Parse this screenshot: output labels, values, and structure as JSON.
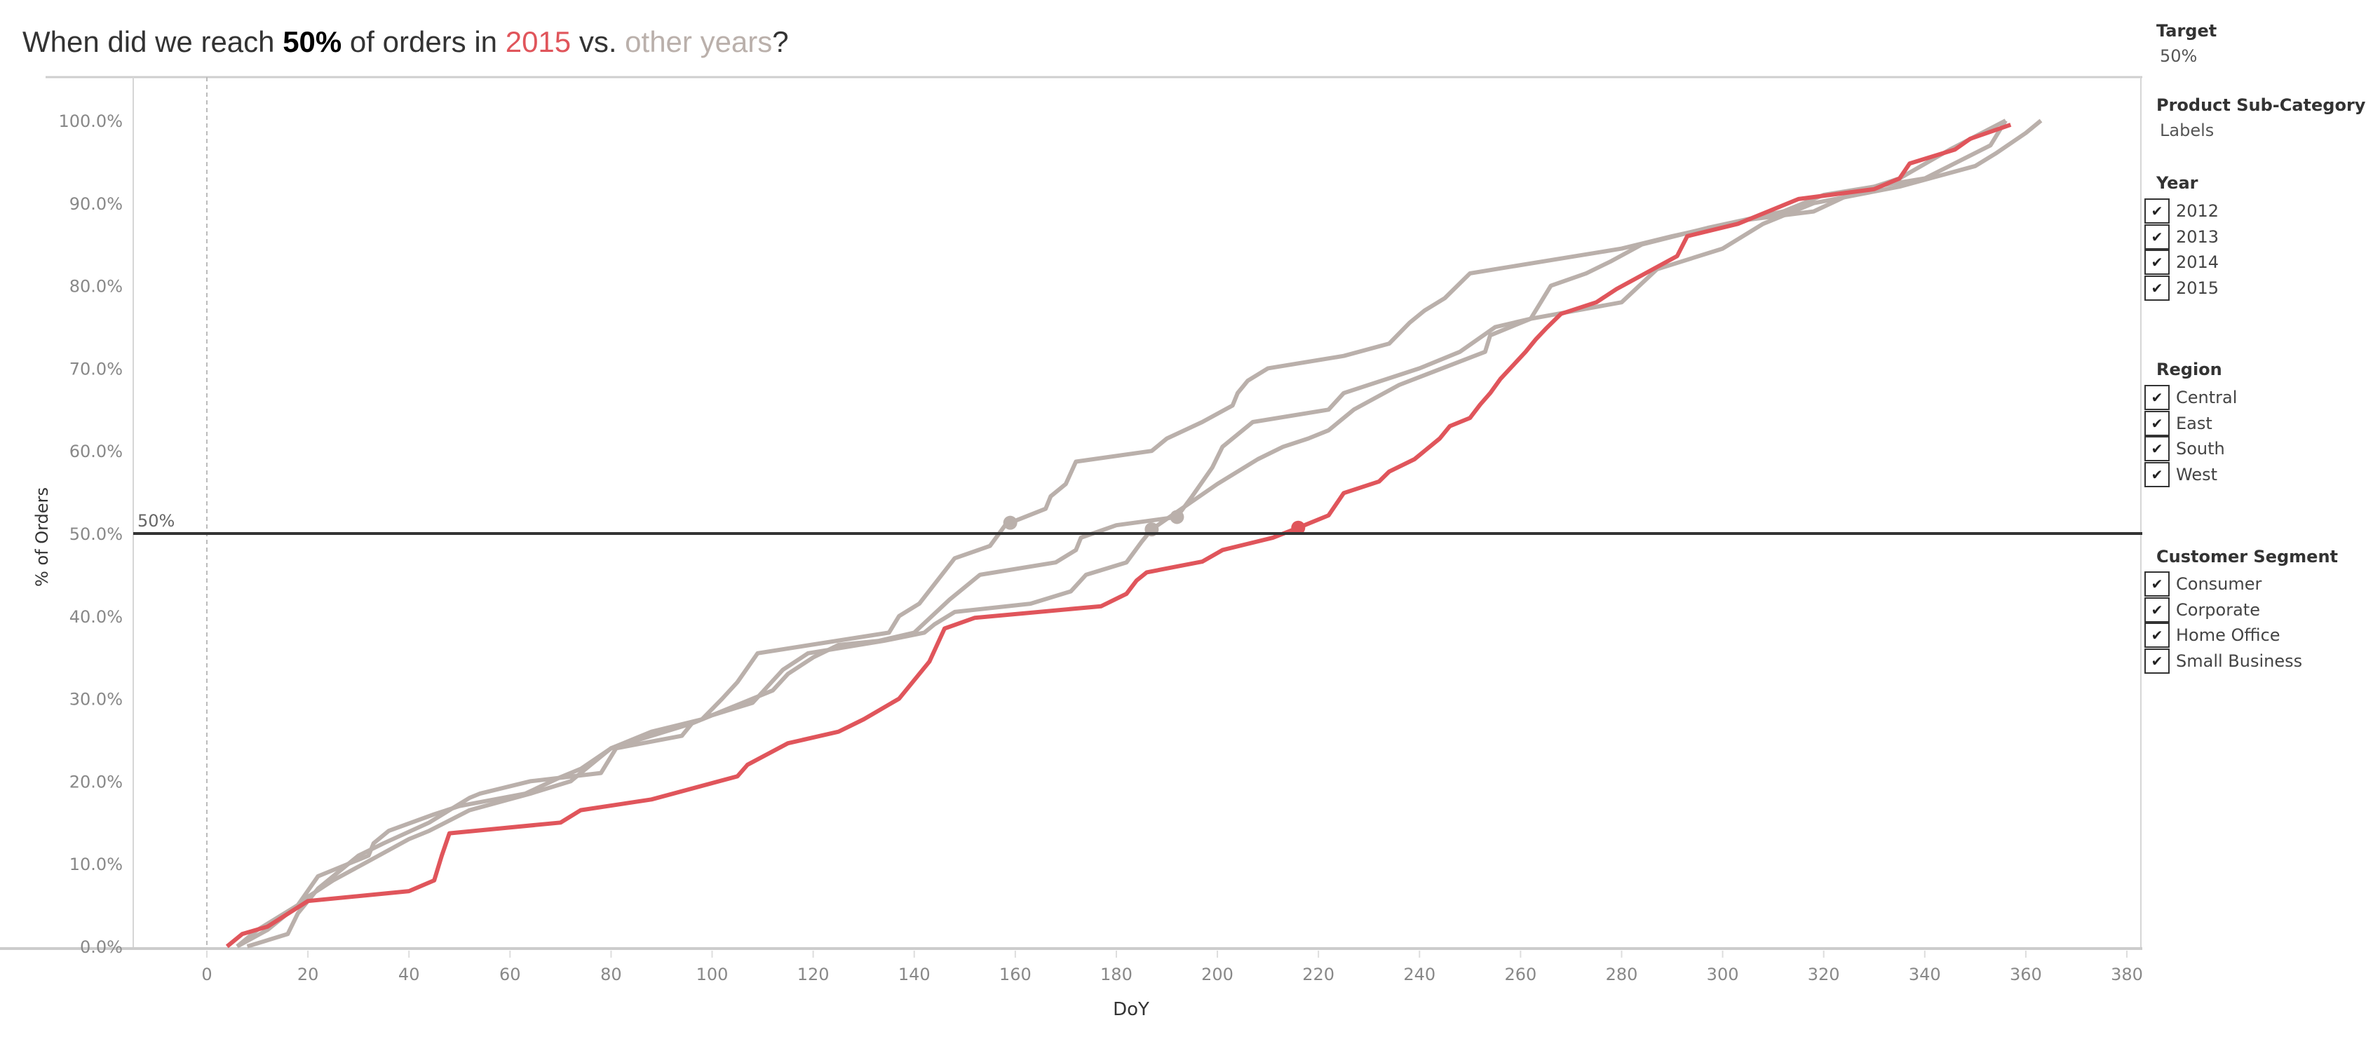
{
  "title": {
    "part1": "When did we reach ",
    "bold": "50%",
    "part2": " of orders in ",
    "highlight": "2015",
    "part3": " vs. ",
    "other": "other years",
    "end": "?"
  },
  "colors": {
    "highlight": "#e0555b",
    "other": "#bab0ab",
    "target_line": "#333333"
  },
  "filters": {
    "target": {
      "label": "Target",
      "value": "50%"
    },
    "product_sub_category": {
      "label": "Product Sub-Category",
      "value": "Labels"
    },
    "year": {
      "label": "Year",
      "items": [
        {
          "label": "2012",
          "checked": true
        },
        {
          "label": "2013",
          "checked": true
        },
        {
          "label": "2014",
          "checked": true
        },
        {
          "label": "2015",
          "checked": true
        }
      ]
    },
    "region": {
      "label": "Region",
      "items": [
        {
          "label": "Central",
          "checked": true
        },
        {
          "label": "East",
          "checked": true
        },
        {
          "label": "South",
          "checked": true
        },
        {
          "label": "West",
          "checked": true
        }
      ]
    },
    "customer_segment": {
      "label": "Customer Segment",
      "items": [
        {
          "label": "Consumer",
          "checked": true
        },
        {
          "label": "Corporate",
          "checked": true
        },
        {
          "label": "Home Office",
          "checked": true
        },
        {
          "label": "Small Business",
          "checked": true
        }
      ]
    }
  },
  "chart_data": {
    "type": "line",
    "xlabel": "DoY",
    "ylabel": "% of Orders",
    "xlim": [
      -15,
      380
    ],
    "ylim": [
      -1,
      104
    ],
    "x_ticks": [
      "0",
      "20",
      "40",
      "60",
      "80",
      "100",
      "120",
      "140",
      "160",
      "180",
      "200",
      "220",
      "240",
      "260",
      "280",
      "300",
      "320",
      "340",
      "360",
      "380"
    ],
    "y_ticks": [
      "0.0%",
      "10.0%",
      "20.0%",
      "30.0%",
      "40.0%",
      "50.0%",
      "60.0%",
      "70.0%",
      "80.0%",
      "90.0%",
      "100.0%"
    ],
    "grid": false,
    "reference_line": {
      "value": 50,
      "label": "50%"
    },
    "series": [
      {
        "highlight": false,
        "crossing_marker": [
          159,
          51.3
        ],
        "points": [
          [
            6,
            0
          ],
          [
            10,
            2
          ],
          [
            18,
            5
          ],
          [
            22,
            8.5
          ],
          [
            32,
            11
          ],
          [
            33,
            12.5
          ],
          [
            36,
            14
          ],
          [
            45,
            16
          ],
          [
            50,
            17
          ],
          [
            63,
            18.5
          ],
          [
            70,
            20.5
          ],
          [
            74,
            21.5
          ],
          [
            80,
            24
          ],
          [
            88,
            26
          ],
          [
            98,
            27.5
          ],
          [
            102,
            30
          ],
          [
            105,
            32
          ],
          [
            109,
            35.5
          ],
          [
            135,
            38
          ],
          [
            137,
            40
          ],
          [
            141,
            41.5
          ],
          [
            148,
            47
          ],
          [
            155,
            48.5
          ],
          [
            158,
            51
          ],
          [
            159,
            51.3
          ],
          [
            166,
            53
          ],
          [
            167,
            54.5
          ],
          [
            170,
            56
          ],
          [
            172,
            58.7
          ],
          [
            187,
            60
          ],
          [
            190,
            61.5
          ],
          [
            197,
            63.5
          ],
          [
            203,
            65.5
          ],
          [
            204,
            67
          ],
          [
            206,
            68.5
          ],
          [
            210,
            70
          ],
          [
            225,
            71.5
          ],
          [
            234,
            73
          ],
          [
            238,
            75.5
          ],
          [
            241,
            77
          ],
          [
            245,
            78.5
          ],
          [
            250,
            81.5
          ],
          [
            280,
            84.5
          ],
          [
            290,
            86
          ],
          [
            305,
            88
          ],
          [
            318,
            89
          ],
          [
            325,
            91
          ],
          [
            335,
            93
          ],
          [
            345,
            96.5
          ],
          [
            356,
            100
          ]
        ]
      },
      {
        "highlight": false,
        "crossing_marker": [
          192,
          52
        ],
        "points": [
          [
            8,
            0
          ],
          [
            16,
            1.5
          ],
          [
            18,
            4
          ],
          [
            22,
            7
          ],
          [
            26,
            9
          ],
          [
            30,
            11
          ],
          [
            35,
            12.5
          ],
          [
            44,
            15
          ],
          [
            48,
            16.5
          ],
          [
            52,
            18
          ],
          [
            54,
            18.5
          ],
          [
            64,
            20
          ],
          [
            78,
            21
          ],
          [
            81,
            24
          ],
          [
            94,
            25.5
          ],
          [
            96,
            27
          ],
          [
            106,
            29.5
          ],
          [
            112,
            31
          ],
          [
            115,
            33
          ],
          [
            120,
            35
          ],
          [
            125,
            36.5
          ],
          [
            133,
            37
          ],
          [
            140,
            38
          ],
          [
            147,
            42
          ],
          [
            150,
            43.5
          ],
          [
            153,
            45
          ],
          [
            168,
            46.5
          ],
          [
            172,
            48
          ],
          [
            173,
            49.5
          ],
          [
            180,
            51
          ],
          [
            192,
            52
          ],
          [
            195,
            54.5
          ],
          [
            199,
            58
          ],
          [
            201,
            60.5
          ],
          [
            207,
            63.5
          ],
          [
            222,
            65
          ],
          [
            225,
            67
          ],
          [
            240,
            70
          ],
          [
            248,
            72
          ],
          [
            255,
            75
          ],
          [
            262,
            76
          ],
          [
            280,
            78
          ],
          [
            287,
            82
          ],
          [
            300,
            84.5
          ],
          [
            308,
            87.5
          ],
          [
            318,
            90
          ],
          [
            335,
            92
          ],
          [
            350,
            94.5
          ],
          [
            354,
            96
          ],
          [
            360,
            98.5
          ],
          [
            363,
            100
          ]
        ]
      },
      {
        "highlight": false,
        "crossing_marker": [
          187,
          50.5
        ],
        "points": [
          [
            6,
            0
          ],
          [
            12,
            2
          ],
          [
            16,
            4
          ],
          [
            20,
            6
          ],
          [
            25,
            8
          ],
          [
            31,
            10
          ],
          [
            40,
            13
          ],
          [
            44,
            14
          ],
          [
            52,
            16.5
          ],
          [
            58,
            17.5
          ],
          [
            64,
            18.5
          ],
          [
            72,
            20
          ],
          [
            75,
            21.5
          ],
          [
            80,
            24
          ],
          [
            96,
            27
          ],
          [
            100,
            28
          ],
          [
            108,
            29.5
          ],
          [
            114,
            33.5
          ],
          [
            119,
            35.5
          ],
          [
            134,
            37
          ],
          [
            142,
            38
          ],
          [
            144,
            39
          ],
          [
            148,
            40.5
          ],
          [
            163,
            41.5
          ],
          [
            171,
            43
          ],
          [
            174,
            45
          ],
          [
            182,
            46.5
          ],
          [
            185,
            49
          ],
          [
            187,
            50.5
          ],
          [
            200,
            56
          ],
          [
            208,
            59
          ],
          [
            213,
            60.5
          ],
          [
            218,
            61.5
          ],
          [
            222,
            62.5
          ],
          [
            227,
            65
          ],
          [
            236,
            68
          ],
          [
            253,
            72
          ],
          [
            254,
            74
          ],
          [
            262,
            76
          ],
          [
            264,
            78
          ],
          [
            266,
            80
          ],
          [
            273,
            81.5
          ],
          [
            278,
            83
          ],
          [
            284,
            85
          ],
          [
            297,
            87
          ],
          [
            312,
            89
          ],
          [
            320,
            91
          ],
          [
            340,
            93
          ],
          [
            353,
            97
          ],
          [
            356,
            100
          ]
        ]
      },
      {
        "name": "2015",
        "highlight": true,
        "crossing_marker": [
          216,
          50.7
        ],
        "points": [
          [
            4,
            0
          ],
          [
            7,
            1.5
          ],
          [
            12,
            2.4
          ],
          [
            20,
            5.5
          ],
          [
            40,
            6.7
          ],
          [
            45,
            8
          ],
          [
            46.5,
            11
          ],
          [
            48,
            13.7
          ],
          [
            70,
            15
          ],
          [
            74,
            16.5
          ],
          [
            88,
            17.8
          ],
          [
            105,
            20.6
          ],
          [
            107,
            22
          ],
          [
            115,
            24.6
          ],
          [
            125,
            26
          ],
          [
            130,
            27.5
          ],
          [
            137,
            30
          ],
          [
            143,
            34.5
          ],
          [
            146,
            38.5
          ],
          [
            152,
            39.8
          ],
          [
            177,
            41.2
          ],
          [
            182,
            42.7
          ],
          [
            184,
            44.3
          ],
          [
            186,
            45.3
          ],
          [
            197,
            46.6
          ],
          [
            201,
            48
          ],
          [
            211,
            49.5
          ],
          [
            216,
            50.7
          ],
          [
            222,
            52.2
          ],
          [
            225,
            54.9
          ],
          [
            232,
            56.3
          ],
          [
            234,
            57.5
          ],
          [
            239,
            59
          ],
          [
            242,
            60.5
          ],
          [
            244,
            61.5
          ],
          [
            246,
            63
          ],
          [
            250,
            64
          ],
          [
            252,
            65.6
          ],
          [
            254,
            67
          ],
          [
            256,
            68.7
          ],
          [
            261,
            72
          ],
          [
            263,
            73.5
          ],
          [
            265,
            74.8
          ],
          [
            268,
            76.6
          ],
          [
            275,
            78
          ],
          [
            279,
            79.6
          ],
          [
            291,
            83.6
          ],
          [
            293,
            86
          ],
          [
            303,
            87.5
          ],
          [
            315,
            90.5
          ],
          [
            330,
            91.7
          ],
          [
            335,
            93
          ],
          [
            337,
            94.8
          ],
          [
            346,
            96.5
          ],
          [
            349,
            97.8
          ],
          [
            357,
            99.5
          ]
        ]
      }
    ]
  }
}
